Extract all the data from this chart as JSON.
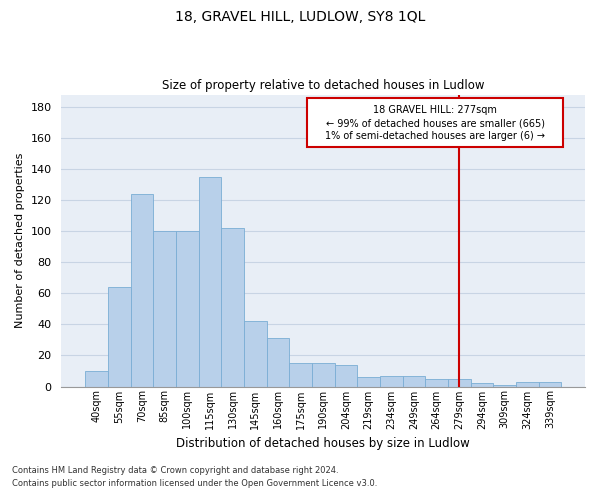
{
  "title": "18, GRAVEL HILL, LUDLOW, SY8 1QL",
  "subtitle": "Size of property relative to detached houses in Ludlow",
  "xlabel": "Distribution of detached houses by size in Ludlow",
  "ylabel": "Number of detached properties",
  "footer_line1": "Contains HM Land Registry data © Crown copyright and database right 2024.",
  "footer_line2": "Contains public sector information licensed under the Open Government Licence v3.0.",
  "bar_labels": [
    "40sqm",
    "55sqm",
    "70sqm",
    "85sqm",
    "100sqm",
    "115sqm",
    "130sqm",
    "145sqm",
    "160sqm",
    "175sqm",
    "190sqm",
    "204sqm",
    "219sqm",
    "234sqm",
    "249sqm",
    "264sqm",
    "279sqm",
    "294sqm",
    "309sqm",
    "324sqm",
    "339sqm"
  ],
  "bar_values": [
    10,
    64,
    124,
    100,
    100,
    135,
    102,
    42,
    31,
    15,
    15,
    14,
    6,
    7,
    7,
    5,
    5,
    2,
    1,
    3,
    3
  ],
  "bar_color": "#b8d0ea",
  "bar_edge_color": "#7aadd4",
  "grid_color": "#c8d4e4",
  "bg_color": "#e8eef6",
  "annotation_line1": "18 GRAVEL HILL: 277sqm",
  "annotation_line2": "← 99% of detached houses are smaller (665)",
  "annotation_line3": "1% of semi-detached houses are larger (6) →",
  "vline_index": 16,
  "vline_color": "#cc0000",
  "annotation_box_color": "#cc0000",
  "ylim": [
    0,
    188
  ],
  "yticks": [
    0,
    20,
    40,
    60,
    80,
    100,
    120,
    140,
    160,
    180
  ]
}
